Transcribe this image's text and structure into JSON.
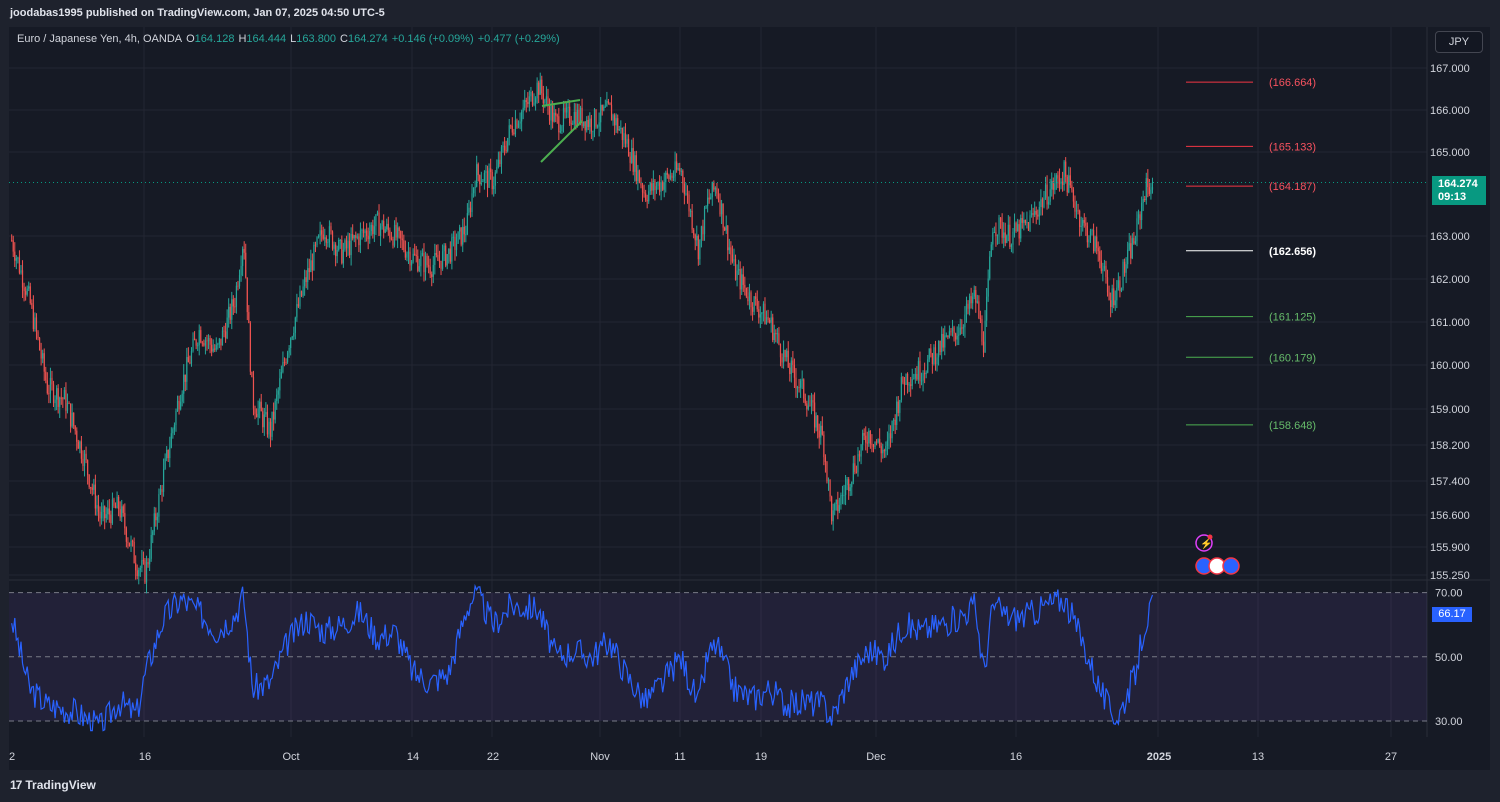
{
  "header": {
    "publisher": "joodabas1995 published on TradingView.com, Jan 07, 2025 04:50 UTC-5"
  },
  "legend": {
    "symbol": "Euro / Japanese Yen, 4h, OANDA",
    "open_label": "O",
    "open": "164.128",
    "high_label": "H",
    "high": "164.444",
    "low_label": "L",
    "low": "163.800",
    "close_label": "C",
    "close": "164.274",
    "change": "+0.146 (+0.09%)",
    "change2": "+0.477 (+0.29%)"
  },
  "currency_button": "JPY",
  "price_tag": {
    "price": "164.274",
    "countdown": "09:13"
  },
  "rsi_tag": "66.17",
  "footer": {
    "logo": "17",
    "brand": "TradingView"
  },
  "colors": {
    "up": "#26a69a",
    "down": "#ef5350",
    "rsi": "#2962ff",
    "bg": "#161a25",
    "grid": "#232632",
    "resistance": "#f23645",
    "support": "#4caf50"
  },
  "chart_data": {
    "type": "candlestick",
    "price_axis": {
      "ticks": [
        "167.000",
        "166.000",
        "165.000",
        "163.000",
        "162.000",
        "161.000",
        "160.000",
        "159.000",
        "158.200",
        "157.400",
        "156.600",
        "155.900",
        "155.250"
      ],
      "range": [
        155.25,
        167.0
      ]
    },
    "time_axis": {
      "ticks": [
        "2",
        "16",
        "Oct",
        "14",
        "22",
        "Nov",
        "11",
        "19",
        "Dec",
        "16",
        "2025",
        "13",
        "27"
      ]
    },
    "levels": [
      {
        "label": "(166.664)",
        "value": 166.664,
        "kind": "resistance"
      },
      {
        "label": "(165.133)",
        "value": 165.133,
        "kind": "resistance"
      },
      {
        "label": "(164.187)",
        "value": 164.187,
        "kind": "resistance"
      },
      {
        "label": "(162.656)",
        "value": 162.656,
        "kind": "pivot"
      },
      {
        "label": "(161.125)",
        "value": 161.125,
        "kind": "support"
      },
      {
        "label": "(160.179)",
        "value": 160.179,
        "kind": "support"
      },
      {
        "label": "(158.648)",
        "value": 158.648,
        "kind": "support"
      }
    ],
    "last_price": 164.274,
    "price_path": [
      {
        "date": "Sep 01",
        "price": 162.9
      },
      {
        "date": "Sep 03",
        "price": 161.5
      },
      {
        "date": "Sep 05",
        "price": 159.5
      },
      {
        "date": "Sep 07",
        "price": 159.2
      },
      {
        "date": "Sep 09",
        "price": 158.0
      },
      {
        "date": "Sep 11",
        "price": 156.5
      },
      {
        "date": "Sep 13",
        "price": 156.8
      },
      {
        "date": "Sep 15",
        "price": 155.5
      },
      {
        "date": "Sep 16",
        "price": 155.3
      },
      {
        "date": "Sep 18",
        "price": 157.5
      },
      {
        "date": "Sep 20",
        "price": 159.5
      },
      {
        "date": "Sep 22",
        "price": 160.8
      },
      {
        "date": "Sep 24",
        "price": 160.3
      },
      {
        "date": "Sep 26",
        "price": 161.5
      },
      {
        "date": "Sep 27",
        "price": 163.0
      },
      {
        "date": "Sep 28",
        "price": 159.2
      },
      {
        "date": "Sep 30",
        "price": 158.5
      },
      {
        "date": "Oct 02",
        "price": 160.5
      },
      {
        "date": "Oct 04",
        "price": 162.0
      },
      {
        "date": "Oct 06",
        "price": 163.2
      },
      {
        "date": "Oct 08",
        "price": 162.6
      },
      {
        "date": "Oct 10",
        "price": 163.0
      },
      {
        "date": "Oct 12",
        "price": 163.3
      },
      {
        "date": "Oct 14",
        "price": 163.0
      },
      {
        "date": "Oct 16",
        "price": 162.5
      },
      {
        "date": "Oct 18",
        "price": 162.3
      },
      {
        "date": "Oct 20",
        "price": 162.6
      },
      {
        "date": "Oct 22",
        "price": 163.2
      },
      {
        "date": "Oct 23",
        "price": 164.5
      },
      {
        "date": "Oct 25",
        "price": 164.3
      },
      {
        "date": "Oct 27",
        "price": 165.6
      },
      {
        "date": "Oct 29",
        "price": 166.2
      },
      {
        "date": "Oct 30",
        "price": 166.6
      },
      {
        "date": "Nov 01",
        "price": 165.7
      },
      {
        "date": "Nov 03",
        "price": 165.9
      },
      {
        "date": "Nov 05",
        "price": 165.7
      },
      {
        "date": "Nov 07",
        "price": 166.0
      },
      {
        "date": "Nov 09",
        "price": 165.2
      },
      {
        "date": "Nov 11",
        "price": 164.0
      },
      {
        "date": "Nov 13",
        "price": 164.3
      },
      {
        "date": "Nov 15",
        "price": 164.6
      },
      {
        "date": "Nov 17",
        "price": 162.7
      },
      {
        "date": "Nov 18",
        "price": 163.8
      },
      {
        "date": "Nov 19",
        "price": 164.2
      },
      {
        "date": "Nov 21",
        "price": 162.2
      },
      {
        "date": "Nov 23",
        "price": 161.5
      },
      {
        "date": "Nov 25",
        "price": 161.0
      },
      {
        "date": "Nov 27",
        "price": 160.0
      },
      {
        "date": "Nov 29",
        "price": 159.3
      },
      {
        "date": "Dec 01",
        "price": 158.3
      },
      {
        "date": "Dec 02",
        "price": 156.5
      },
      {
        "date": "Dec 04",
        "price": 157.5
      },
      {
        "date": "Dec 06",
        "price": 158.5
      },
      {
        "date": "Dec 08",
        "price": 158.0
      },
      {
        "date": "Dec 10",
        "price": 159.7
      },
      {
        "date": "Dec 12",
        "price": 159.9
      },
      {
        "date": "Dec 14",
        "price": 160.4
      },
      {
        "date": "Dec 16",
        "price": 160.8
      },
      {
        "date": "Dec 18",
        "price": 161.6
      },
      {
        "date": "Dec 19",
        "price": 160.5
      },
      {
        "date": "Dec 20",
        "price": 163.3
      },
      {
        "date": "Dec 22",
        "price": 163.0
      },
      {
        "date": "Dec 24",
        "price": 163.3
      },
      {
        "date": "Dec 26",
        "price": 164.0
      },
      {
        "date": "Dec 28",
        "price": 164.5
      },
      {
        "date": "Dec 30",
        "price": 163.3
      },
      {
        "date": "Jan 01",
        "price": 162.6
      },
      {
        "date": "Jan 02",
        "price": 161.5
      },
      {
        "date": "Jan 03",
        "price": 161.8
      },
      {
        "date": "Jan 05",
        "price": 163.0
      },
      {
        "date": "Jan 06",
        "price": 164.1
      },
      {
        "date": "Jan 07",
        "price": 164.27
      }
    ],
    "rsi": {
      "last": 66.17,
      "ticks": [
        "70.00",
        "50.00",
        "30.00"
      ],
      "range": [
        25,
        73
      ],
      "bands": [
        30,
        50,
        70
      ],
      "path": [
        {
          "date": "Sep 01",
          "value": 62
        },
        {
          "date": "Sep 03",
          "value": 40
        },
        {
          "date": "Sep 05",
          "value": 35
        },
        {
          "date": "Sep 08",
          "value": 33
        },
        {
          "date": "Sep 11",
          "value": 28
        },
        {
          "date": "Sep 13",
          "value": 36
        },
        {
          "date": "Sep 15",
          "value": 32
        },
        {
          "date": "Sep 16",
          "value": 45
        },
        {
          "date": "Sep 18",
          "value": 62
        },
        {
          "date": "Sep 20",
          "value": 68
        },
        {
          "date": "Sep 22",
          "value": 64
        },
        {
          "date": "Sep 24",
          "value": 58
        },
        {
          "date": "Sep 26",
          "value": 63
        },
        {
          "date": "Sep 27",
          "value": 69
        },
        {
          "date": "Sep 28",
          "value": 40
        },
        {
          "date": "Sep 30",
          "value": 42
        },
        {
          "date": "Oct 02",
          "value": 55
        },
        {
          "date": "Oct 04",
          "value": 62
        },
        {
          "date": "Oct 06",
          "value": 58
        },
        {
          "date": "Oct 08",
          "value": 60
        },
        {
          "date": "Oct 10",
          "value": 64
        },
        {
          "date": "Oct 12",
          "value": 56
        },
        {
          "date": "Oct 14",
          "value": 58
        },
        {
          "date": "Oct 16",
          "value": 45
        },
        {
          "date": "Oct 18",
          "value": 42
        },
        {
          "date": "Oct 20",
          "value": 45
        },
        {
          "date": "Oct 22",
          "value": 65
        },
        {
          "date": "Oct 23",
          "value": 70
        },
        {
          "date": "Oct 25",
          "value": 60
        },
        {
          "date": "Oct 27",
          "value": 66
        },
        {
          "date": "Oct 30",
          "value": 65
        },
        {
          "date": "Nov 01",
          "value": 50
        },
        {
          "date": "Nov 03",
          "value": 52
        },
        {
          "date": "Nov 05",
          "value": 50
        },
        {
          "date": "Nov 07",
          "value": 55
        },
        {
          "date": "Nov 09",
          "value": 44
        },
        {
          "date": "Nov 11",
          "value": 36
        },
        {
          "date": "Nov 13",
          "value": 42
        },
        {
          "date": "Nov 15",
          "value": 50
        },
        {
          "date": "Nov 17",
          "value": 35
        },
        {
          "date": "Nov 18",
          "value": 50
        },
        {
          "date": "Nov 19",
          "value": 54
        },
        {
          "date": "Nov 21",
          "value": 40
        },
        {
          "date": "Nov 23",
          "value": 37
        },
        {
          "date": "Nov 25",
          "value": 40
        },
        {
          "date": "Nov 27",
          "value": 35
        },
        {
          "date": "Nov 29",
          "value": 36
        },
        {
          "date": "Dec 01",
          "value": 35
        },
        {
          "date": "Dec 02",
          "value": 31
        },
        {
          "date": "Dec 04",
          "value": 44
        },
        {
          "date": "Dec 06",
          "value": 52
        },
        {
          "date": "Dec 08",
          "value": 50
        },
        {
          "date": "Dec 10",
          "value": 60
        },
        {
          "date": "Dec 12",
          "value": 58
        },
        {
          "date": "Dec 14",
          "value": 60
        },
        {
          "date": "Dec 16",
          "value": 62
        },
        {
          "date": "Dec 18",
          "value": 66
        },
        {
          "date": "Dec 19",
          "value": 45
        },
        {
          "date": "Dec 20",
          "value": 66
        },
        {
          "date": "Dec 22",
          "value": 62
        },
        {
          "date": "Dec 24",
          "value": 63
        },
        {
          "date": "Dec 26",
          "value": 66
        },
        {
          "date": "Dec 28",
          "value": 68
        },
        {
          "date": "Dec 30",
          "value": 55
        },
        {
          "date": "Jan 01",
          "value": 40
        },
        {
          "date": "Jan 02",
          "value": 34
        },
        {
          "date": "Jan 03",
          "value": 31
        },
        {
          "date": "Jan 05",
          "value": 45
        },
        {
          "date": "Jan 06",
          "value": 60
        },
        {
          "date": "Jan 07",
          "value": 66.17
        }
      ]
    }
  }
}
